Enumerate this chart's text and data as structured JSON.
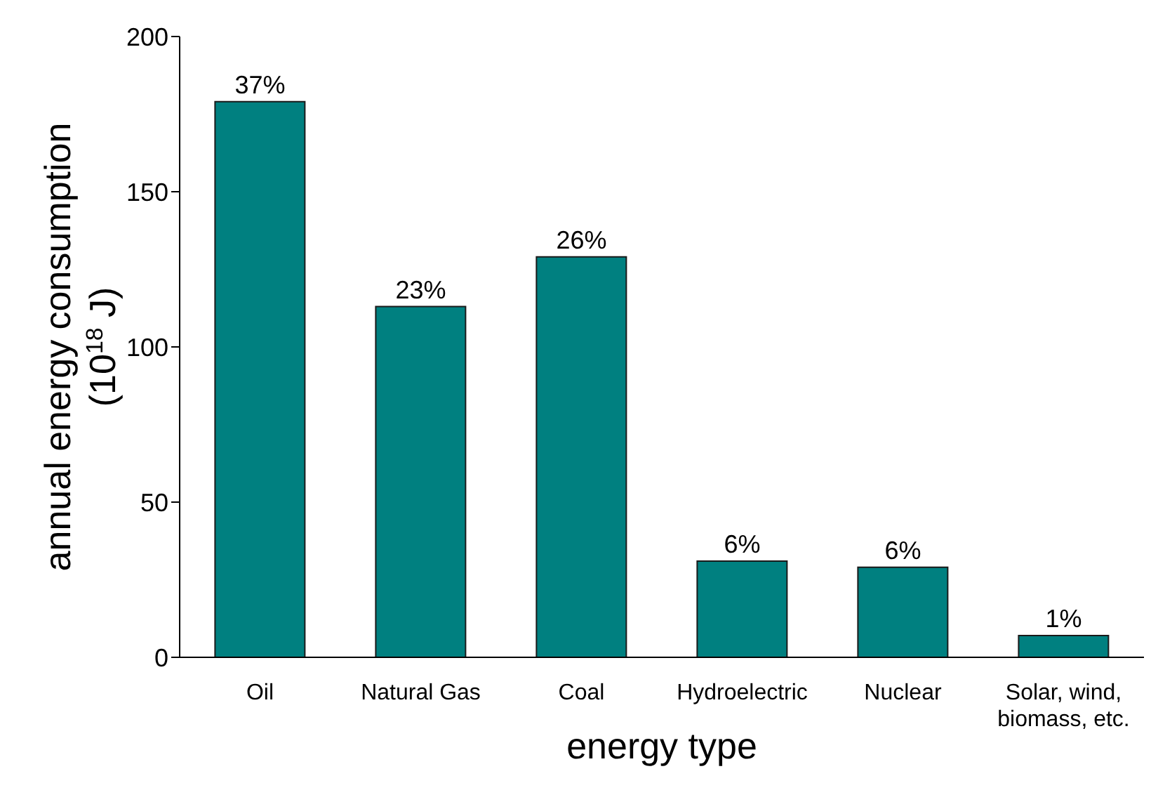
{
  "chart_data": {
    "type": "bar",
    "xlabel": "energy type",
    "ylabel": "annual energy consumption\n(10$^{18}$ J)",
    "categories": [
      "Oil",
      "Natural Gas",
      "Coal",
      "Hydroelectric",
      "Nuclear",
      "Solar, wind,\nbiomass, etc."
    ],
    "values": [
      179,
      113,
      129,
      31,
      29,
      7
    ],
    "annotations": [
      {
        "text": "37%",
        "x": "Oil",
        "y": 179
      },
      {
        "text": "23%",
        "x": "Natural Gas",
        "y": 113
      },
      {
        "text": "26%",
        "x": "Coal",
        "y": 129
      },
      {
        "text": "6%",
        "x": "Hydroelectric",
        "y": 31
      },
      {
        "text": "6%",
        "x": "Nuclear",
        "y": 29
      },
      {
        "text": "1%",
        "x": "Solar, wind,\nbiomass, etc.",
        "y": 7
      }
    ],
    "color": "#008080",
    "ylim": [
      0,
      200
    ],
    "yticks": [
      0,
      50,
      100,
      150,
      200
    ],
    "grid": false,
    "legend": false
  }
}
